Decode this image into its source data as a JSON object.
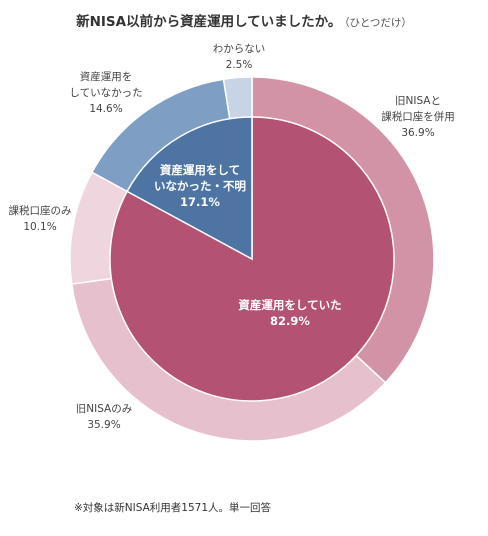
{
  "title": "新NISA以前から資産運用していましたか。",
  "title_note": "（ひとつだけ）",
  "footnote": "※対象は新NISA利用者1571人。単一回答",
  "chart_data": {
    "type": "pie",
    "subtype": "nested-donut",
    "inner": [
      {
        "label": "資産運用をしていた",
        "value": 82.9,
        "value_label": "82.9%",
        "color": "#b35272"
      },
      {
        "label_lines": [
          "資産運用をして",
          "いなかった・不明"
        ],
        "value": 17.1,
        "value_label": "17.1%",
        "color": "#4e74a4"
      }
    ],
    "outer": [
      {
        "label_lines": [
          "旧NISAと",
          "課税口座を併用"
        ],
        "value": 36.9,
        "value_label": "36.9%",
        "color": "#d393a7"
      },
      {
        "label_lines": [
          "旧NISAのみ"
        ],
        "value": 35.9,
        "value_label": "35.9%",
        "color": "#e6c0cd"
      },
      {
        "label_lines": [
          "課税口座のみ"
        ],
        "value": 10.1,
        "value_label": "10.1%",
        "color": "#efd5dd"
      },
      {
        "label_lines": [
          "資産運用を",
          "していなかった"
        ],
        "value": 14.6,
        "value_label": "14.6%",
        "color": "#7f9ec4"
      },
      {
        "label_lines": [
          "わからない"
        ],
        "value": 2.5,
        "value_label": "2.5%",
        "color": "#c6d4e6"
      }
    ]
  }
}
